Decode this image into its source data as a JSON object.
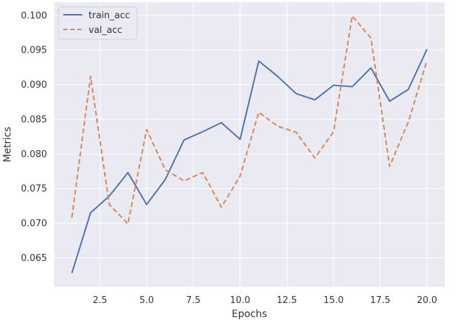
{
  "chart_data": {
    "type": "line",
    "xlabel": "Epochs",
    "ylabel": "Metrics",
    "xlim": [
      0.05,
      20.95
    ],
    "ylim": [
      0.0608,
      0.1019
    ],
    "x_ticks": [
      2.5,
      5.0,
      7.5,
      10.0,
      12.5,
      15.0,
      17.5,
      20.0
    ],
    "x_tick_labels": [
      "2.5",
      "5.0",
      "7.5",
      "10.0",
      "12.5",
      "15.0",
      "17.5",
      "20.0"
    ],
    "y_ticks": [
      0.065,
      0.07,
      0.075,
      0.08,
      0.085,
      0.09,
      0.095,
      0.1
    ],
    "y_tick_labels": [
      "0.065",
      "0.070",
      "0.075",
      "0.080",
      "0.085",
      "0.090",
      "0.095",
      "0.100"
    ],
    "grid": true,
    "legend_position": "top-left",
    "background_color": "#eaeaf2",
    "grid_color": "#ffffff",
    "x": [
      1,
      2,
      3,
      4,
      5,
      6,
      7,
      8,
      9,
      10,
      11,
      12,
      13,
      14,
      15,
      16,
      17,
      18,
      19,
      20
    ],
    "series": [
      {
        "name": "train_acc",
        "color": "#4c72b0",
        "dash": "solid",
        "values": [
          0.0628,
          0.0715,
          0.0739,
          0.0773,
          0.0727,
          0.0763,
          0.082,
          0.0832,
          0.0845,
          0.0821,
          0.0934,
          0.0912,
          0.0887,
          0.0878,
          0.0899,
          0.0897,
          0.0924,
          0.0876,
          0.0893,
          0.0951
        ]
      },
      {
        "name": "val_acc",
        "color": "#dd8452",
        "dash": "dashed",
        "values": [
          0.0708,
          0.0912,
          0.0727,
          0.0699,
          0.0835,
          0.0777,
          0.0761,
          0.0773,
          0.0723,
          0.0768,
          0.086,
          0.084,
          0.0831,
          0.0794,
          0.0832,
          0.0999,
          0.0967,
          0.0782,
          0.0846,
          0.0935
        ]
      }
    ]
  }
}
